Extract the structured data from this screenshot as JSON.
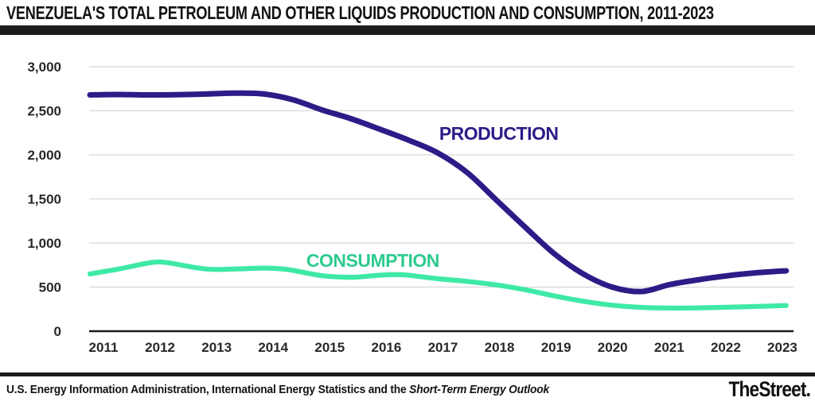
{
  "page": {
    "title": "VENEZUELA'S TOTAL PETROLEUM AND OTHER LIQUIDS PRODUCTION AND CONSUMPTION, 2011-2023"
  },
  "footer": {
    "source_prefix": "U.S. Energy Information Administration, International Energy Statistics and the ",
    "source_italic": "Short-Term Energy Outlook",
    "logo": "TheStreet."
  },
  "chart_data": {
    "type": "line",
    "title": "VENEZUELA'S TOTAL PETROLEUM AND OTHER LIQUIDS PRODUCTION AND CONSUMPTION, 2011-2023",
    "xlabel": "",
    "ylabel": "",
    "x_range": [
      2011,
      2023
    ],
    "ylim": [
      0,
      3000
    ],
    "grid": true,
    "legend_position": "inline-labels",
    "yticks": {
      "values": [
        0,
        500,
        1000,
        1500,
        2000,
        2500,
        3000
      ],
      "labels": [
        "0",
        "500",
        "1,000",
        "1,500",
        "2,000",
        "2,500",
        "3,000"
      ]
    },
    "xticks": [
      "2011",
      "2012",
      "2013",
      "2014",
      "2015",
      "2016",
      "2017",
      "2018",
      "2019",
      "2020",
      "2021",
      "2022",
      "2023"
    ],
    "series": [
      {
        "name": "PRODUCTION",
        "color": "#2c1c87",
        "x": [
          2011,
          2011.5,
          2012,
          2012.5,
          2013,
          2013.5,
          2014,
          2014.5,
          2015,
          2015.5,
          2016,
          2016.5,
          2017,
          2017.5,
          2018,
          2018.5,
          2019,
          2019.5,
          2020,
          2020.5,
          2021,
          2021.5,
          2022,
          2022.5,
          2023
        ],
        "values": [
          2680,
          2685,
          2680,
          2682,
          2690,
          2700,
          2690,
          2625,
          2510,
          2410,
          2290,
          2165,
          2020,
          1800,
          1490,
          1180,
          880,
          650,
          500,
          450,
          530,
          585,
          630,
          663,
          685
        ]
      },
      {
        "name": "CONSUMPTION",
        "color": "#3ee9a6",
        "x": [
          2011,
          2011.5,
          2012,
          2012.3,
          2013,
          2013.5,
          2014,
          2014.4,
          2015,
          2015.5,
          2016,
          2016.4,
          2017,
          2017.5,
          2018,
          2018.5,
          2019,
          2019.5,
          2020,
          2020.5,
          2021,
          2021.5,
          2022,
          2022.5,
          2023
        ],
        "values": [
          650,
          705,
          772,
          780,
          705,
          705,
          715,
          700,
          630,
          612,
          635,
          640,
          595,
          565,
          525,
          470,
          400,
          340,
          295,
          270,
          262,
          265,
          272,
          281,
          291
        ]
      }
    ],
    "annotations": [
      {
        "text": "PRODUCTION",
        "x": 2017.02,
        "y": 2170,
        "color": "#2c1c87"
      },
      {
        "text": "CONSUMPTION",
        "x": 2014.73,
        "y": 730,
        "color": "#2dcb8e"
      }
    ],
    "colors": {
      "production": "#2c1c87",
      "consumption": "#3ee9a6",
      "gridline": "#d8d8d8",
      "axis": "#1a1a1c",
      "tick_text": "#28282c"
    }
  }
}
